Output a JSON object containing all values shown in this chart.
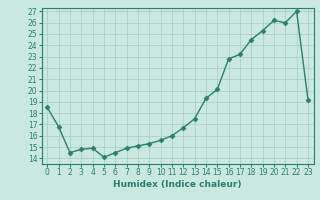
{
  "x": [
    0,
    1,
    2,
    3,
    4,
    5,
    6,
    7,
    8,
    9,
    10,
    11,
    12,
    13,
    14,
    15,
    16,
    17,
    18,
    19,
    20,
    21,
    22,
    23
  ],
  "y": [
    18.5,
    16.8,
    14.5,
    14.8,
    14.9,
    14.1,
    14.5,
    14.9,
    15.1,
    15.3,
    15.6,
    16.0,
    16.7,
    17.5,
    19.3,
    20.1,
    22.8,
    23.2,
    24.5,
    25.3,
    26.2,
    26.0,
    27.0,
    19.2
  ],
  "line_color": "#2e7d6e",
  "marker_color": "#2e7d6e",
  "bg_color": "#c8e8e0",
  "grid_color": "#a8ccc4",
  "xlabel": "Humidex (Indice chaleur)",
  "ylim_min": 13.5,
  "ylim_max": 27.3,
  "xlim_min": -0.5,
  "xlim_max": 23.5,
  "yticks": [
    14,
    15,
    16,
    17,
    18,
    19,
    20,
    21,
    22,
    23,
    24,
    25,
    26,
    27
  ],
  "xticks": [
    0,
    1,
    2,
    3,
    4,
    5,
    6,
    7,
    8,
    9,
    10,
    11,
    12,
    13,
    14,
    15,
    16,
    17,
    18,
    19,
    20,
    21,
    22,
    23
  ],
  "tick_fontsize": 5.5,
  "xlabel_fontsize": 6.5,
  "linewidth": 1.0,
  "markersize": 2.5
}
